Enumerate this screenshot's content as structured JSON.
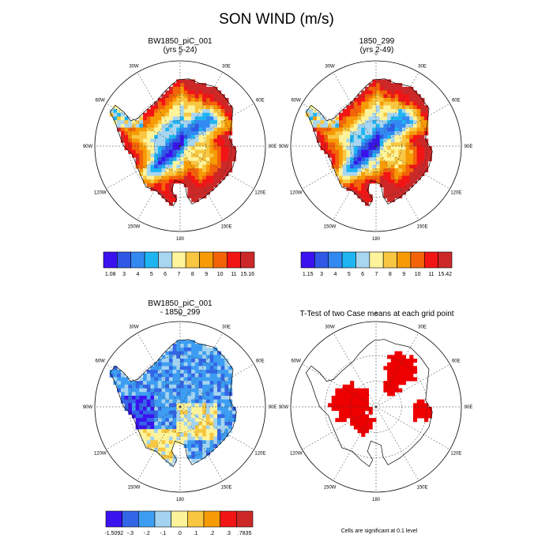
{
  "figure": {
    "title": "SON WIND (m/s)",
    "note": "Cells are significant at 0.1 level"
  },
  "chart_data": [
    {
      "type": "heatmap",
      "projection": "south polar stereographic",
      "title": "BW1850_piC_001",
      "subtitle": "(yrs 5-24)",
      "lon_labels": [
        "0",
        "30E",
        "60E",
        "90E",
        "120E",
        "150E",
        "180",
        "150W",
        "120W",
        "90W",
        "60W",
        "30W"
      ],
      "colorbar": {
        "labels": [
          "1.08",
          "3",
          "4",
          "5",
          "6",
          "7",
          "8",
          "9",
          "10",
          "11",
          "15.16"
        ],
        "colors": [
          "#3a12f0",
          "#2f58e6",
          "#3389f2",
          "#1eb5f2",
          "#a8d6f0",
          "#fdf39a",
          "#f8c640",
          "#f69a06",
          "#f36408",
          "#f21515",
          "#cd2828"
        ],
        "range": [
          1.08,
          15.16
        ]
      }
    },
    {
      "type": "heatmap",
      "projection": "south polar stereographic",
      "title": "1850_299",
      "subtitle": "(yrs 2-49)",
      "lon_labels": [
        "0",
        "30E",
        "60E",
        "90E",
        "120E",
        "150E",
        "180",
        "150W",
        "120W",
        "90W",
        "60W",
        "30W"
      ],
      "colorbar": {
        "labels": [
          "1.15",
          "3",
          "4",
          "5",
          "6",
          "7",
          "8",
          "9",
          "10",
          "11",
          "15.42"
        ],
        "colors": [
          "#3a12f0",
          "#2f58e6",
          "#3389f2",
          "#1eb5f2",
          "#a8d6f0",
          "#fdf39a",
          "#f8c640",
          "#f69a06",
          "#f36408",
          "#f21515",
          "#cd2828"
        ],
        "range": [
          1.15,
          15.42
        ]
      }
    },
    {
      "type": "heatmap",
      "projection": "south polar stereographic",
      "title": "BW1850_piC_001",
      "subtitle": "- 1850_299",
      "lon_labels": [
        "0",
        "30E",
        "60E",
        "90E",
        "120E",
        "150E",
        "180",
        "150W",
        "120W",
        "90W",
        "60W",
        "30W"
      ],
      "colorbar": {
        "labels": [
          "-1.5092",
          "-.3",
          "-.2",
          "-.1",
          ".0",
          ".1",
          ".2",
          ".3",
          ".7835"
        ],
        "colors": [
          "#3a12f0",
          "#3366e6",
          "#3d9df2",
          "#a3d3f0",
          "#fdf39a",
          "#f8c640",
          "#f69a06",
          "#f21515",
          "#cd2828"
        ],
        "range": [
          -1.5092,
          0.7835
        ]
      }
    },
    {
      "type": "heatmap",
      "projection": "south polar stereographic",
      "title": "T-Test of two Case means at each grid point",
      "subtitle": "",
      "lon_labels": [
        "0",
        "30E",
        "60E",
        "90E",
        "120E",
        "150E",
        "180",
        "150W",
        "120W",
        "90W",
        "60W",
        "30W"
      ],
      "significance_color": "#ee0000"
    }
  ]
}
